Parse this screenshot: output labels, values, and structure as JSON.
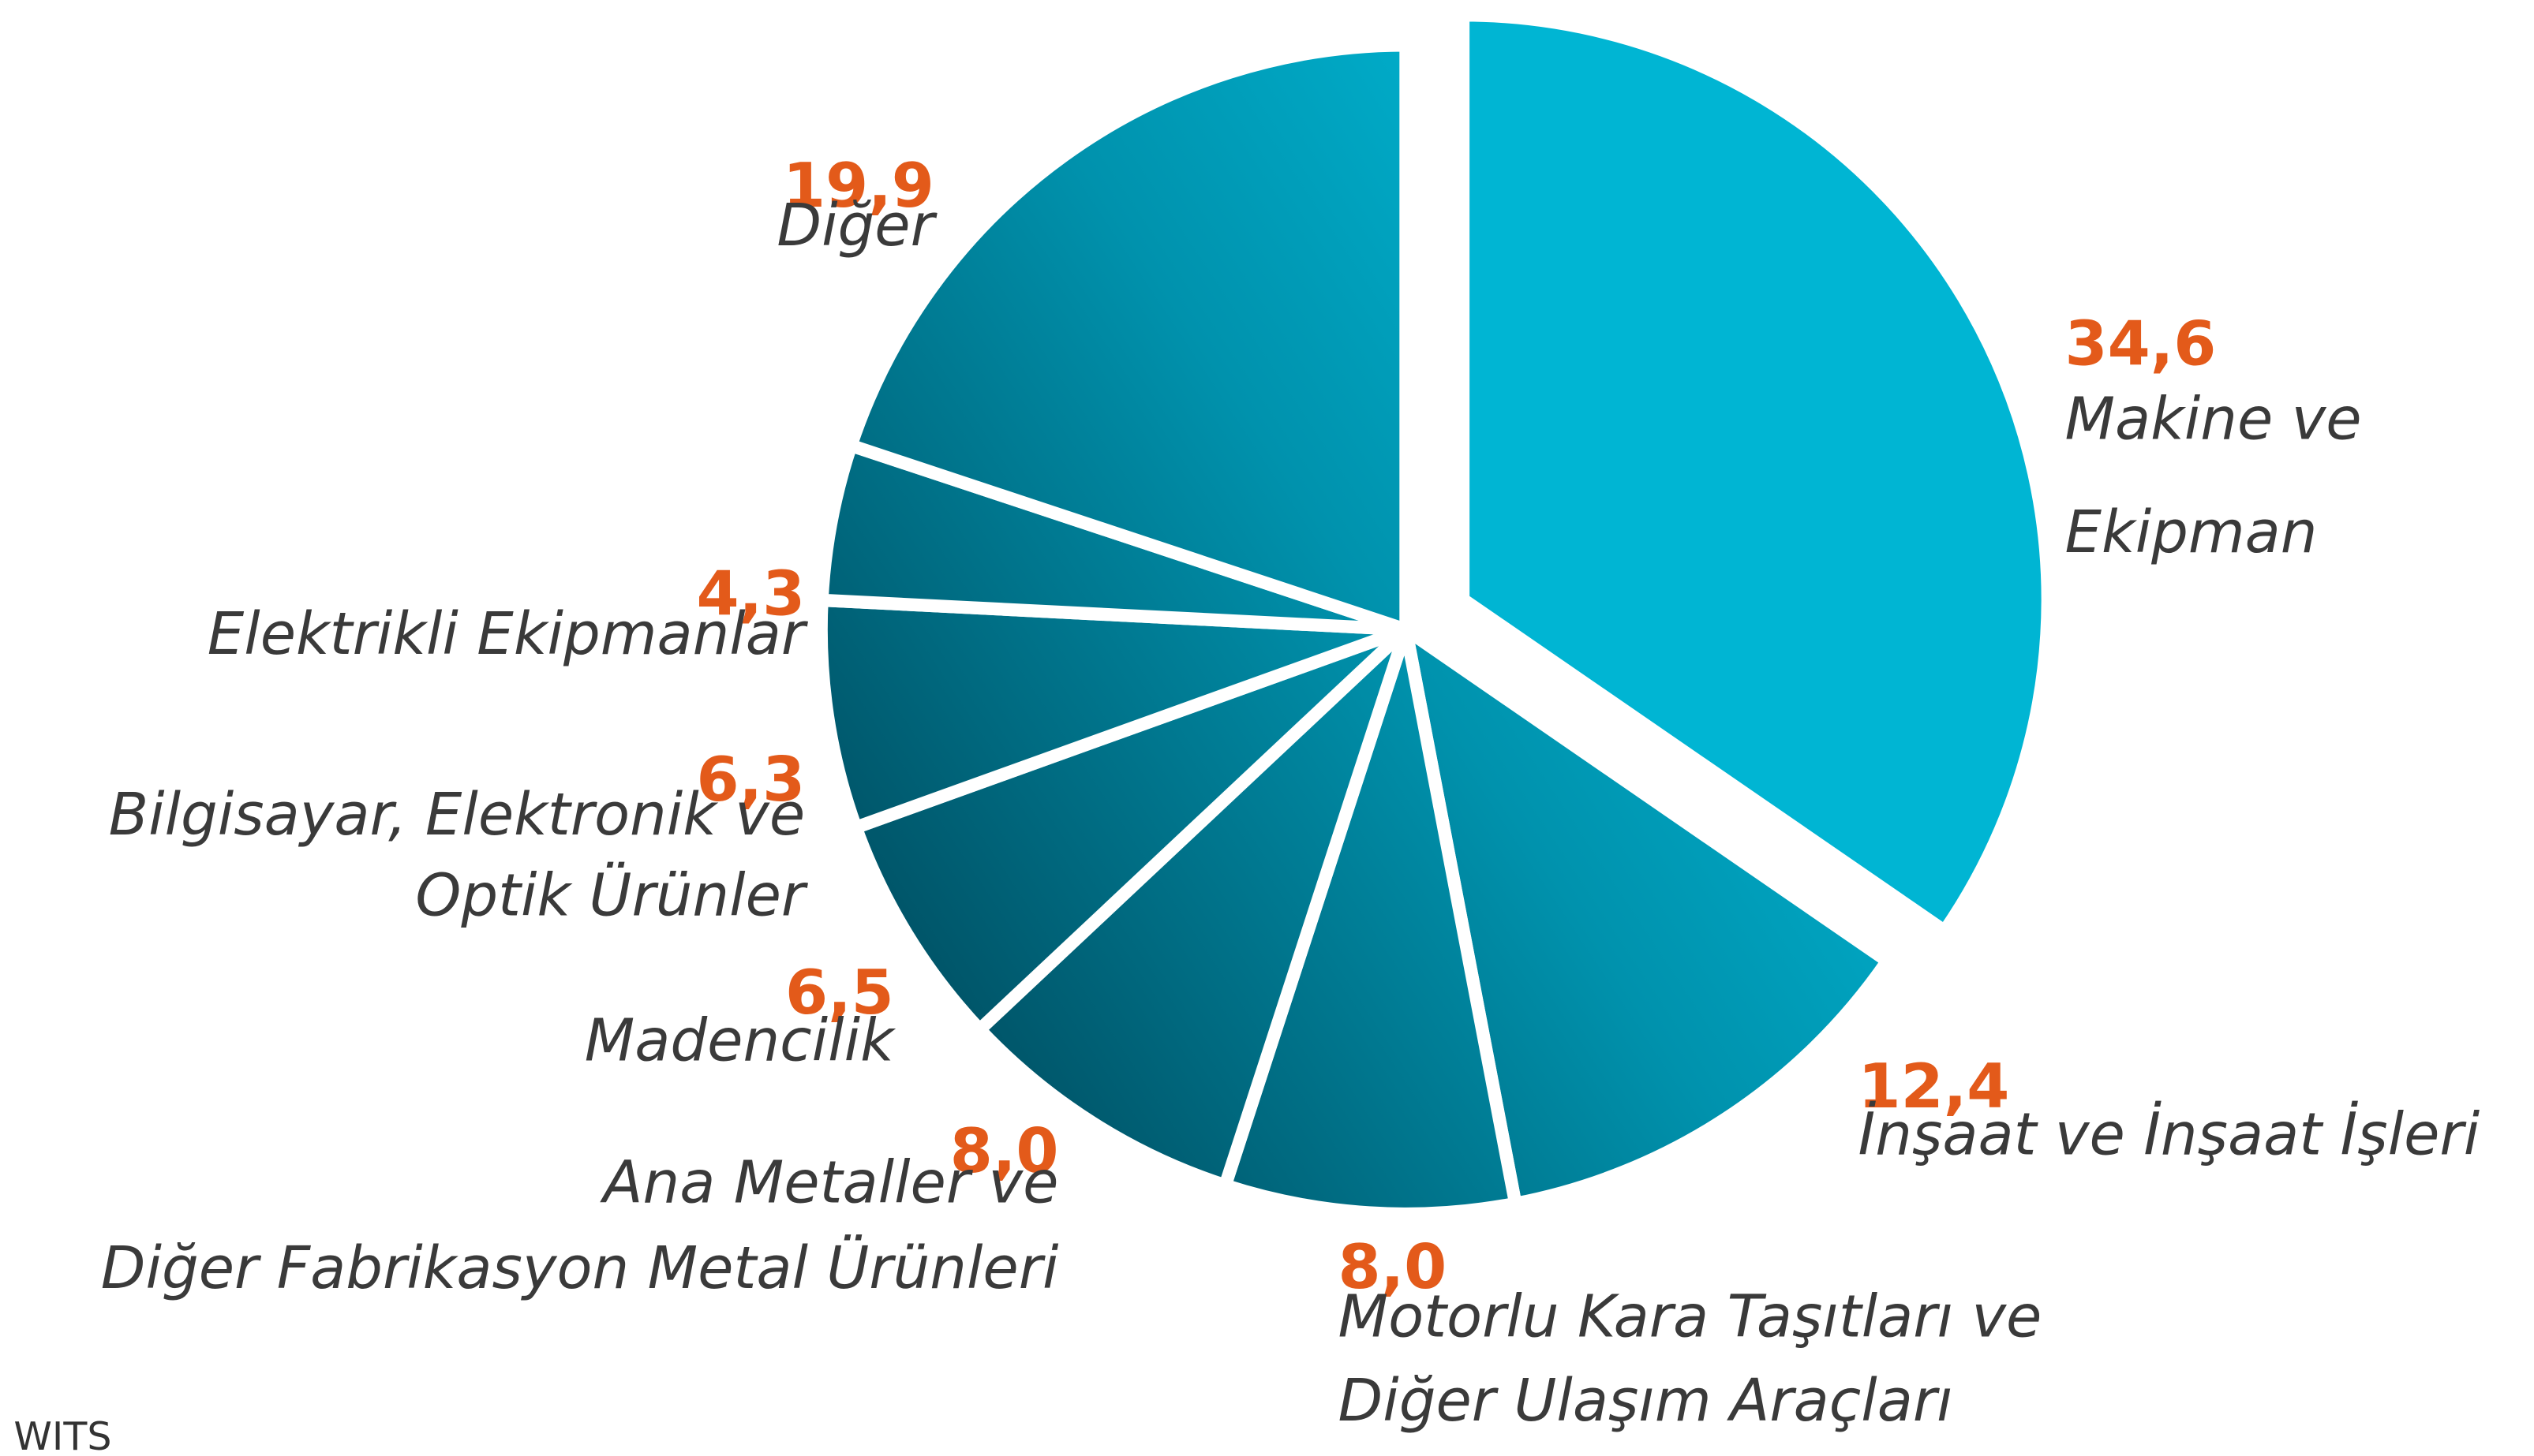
{
  "chart_data": {
    "type": "pie",
    "categories": [
      "Makine ve Ekipman",
      "İnşaat ve İnşaat İşleri",
      "Motorlu Kara Taşıtları ve Diğer Ulaşım Araçları",
      "Ana Metaller ve Diğer Fabrikasyon Metal Ürünleri",
      "Madencilik",
      "Bilgisayar, Elektronik ve Optik Ürünler",
      "Elektrikli Ekipmanlar",
      "Diğer"
    ],
    "values": [
      34.6,
      12.4,
      8.0,
      8.0,
      6.5,
      6.3,
      4.3,
      19.9
    ],
    "value_labels": [
      "34,6",
      "12,4",
      "8,0",
      "8,0",
      "6,5",
      "6,3",
      "4,3",
      "19,9"
    ],
    "color": "#00b5d3",
    "label_color": "#e35a1a",
    "source": "WITS"
  }
}
